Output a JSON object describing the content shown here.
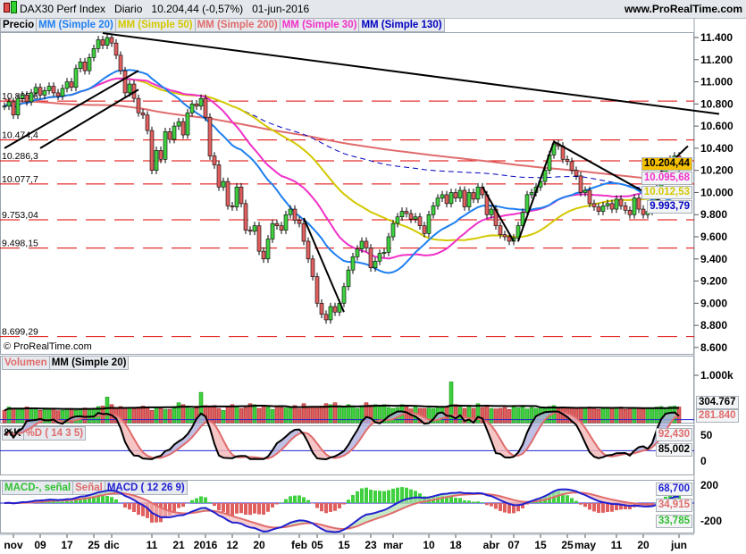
{
  "header": {
    "title": "DAX30 Perf Index   Diario   10.204,44 (-0,57%)   01-jun-2016",
    "site": "www.ProRealTime.com",
    "watermark": "© ProRealTime.com"
  },
  "legend_price": [
    {
      "label": "Precio",
      "color": "#000000"
    },
    {
      "label": "MM (Simple 20)",
      "color": "#1e7ff0"
    },
    {
      "label": "MM (Simple 50)",
      "color": "#d4c800"
    },
    {
      "label": "MM (Simple 200)",
      "color": "#e06c6c"
    },
    {
      "label": "MM (Simple 30)",
      "color": "#f030c8"
    },
    {
      "label": "MM (Simple 130)",
      "color": "#0000c0"
    }
  ],
  "legend_volume": [
    {
      "label": "Volumen",
      "color": "#e06c6c"
    },
    {
      "label": "MM (Simple 20)",
      "color": "#000000"
    }
  ],
  "legend_stoch": [
    {
      "label": "%K",
      "color": "#000000"
    },
    {
      "label": "%D ( 14 3 5)",
      "color": "#e06c6c"
    }
  ],
  "legend_macd": [
    {
      "label": "MACD-, señal",
      "color": "#30c030"
    },
    {
      "label": "Señal",
      "color": "#e06c6c"
    },
    {
      "label": "MACD ( 12 26 9)",
      "color": "#2020d0"
    }
  ],
  "chart_data": {
    "type": "candlestick",
    "ylim": [
      8600,
      11500
    ],
    "yticks": [
      "11.400",
      "11.200",
      "11.000",
      "10.800",
      "10.600",
      "10.400",
      "10.200",
      "10.000",
      "9.800",
      "9.600",
      "9.400",
      "9.200",
      "9.000",
      "8.800",
      "8.600"
    ],
    "ytick_values": [
      11400,
      11200,
      11000,
      10800,
      10600,
      10400,
      10200,
      10000,
      9800,
      9600,
      9400,
      9200,
      9000,
      8800,
      8600
    ],
    "xticks": [
      {
        "label": "nov",
        "bar": 2
      },
      {
        "label": "09",
        "bar": 8
      },
      {
        "label": "17",
        "bar": 14
      },
      {
        "label": "25",
        "bar": 20
      },
      {
        "label": "dic",
        "bar": 24
      },
      {
        "label": "11",
        "bar": 33
      },
      {
        "label": "21",
        "bar": 39
      },
      {
        "label": "2016",
        "bar": 45
      },
      {
        "label": "12",
        "bar": 51
      },
      {
        "label": "20",
        "bar": 57
      },
      {
        "label": "feb",
        "bar": 66
      },
      {
        "label": "05",
        "bar": 70
      },
      {
        "label": "15",
        "bar": 76
      },
      {
        "label": "23",
        "bar": 82
      },
      {
        "label": "mar",
        "bar": 87
      },
      {
        "label": "10",
        "bar": 95
      },
      {
        "label": "18",
        "bar": 101
      },
      {
        "label": "abr",
        "bar": 109
      },
      {
        "label": "07",
        "bar": 114
      },
      {
        "label": "15",
        "bar": 120
      },
      {
        "label": "25",
        "bar": 126
      },
      {
        "label": "may",
        "bar": 130
      },
      {
        "label": "11",
        "bar": 137
      },
      {
        "label": "20",
        "bar": 143
      },
      {
        "label": "jun",
        "bar": 151
      }
    ],
    "closes": [
      10780,
      10820,
      10700,
      10850,
      10880,
      10820,
      10900,
      10950,
      10880,
      10920,
      10960,
      10900,
      10870,
      10940,
      11000,
      10950,
      11120,
      11180,
      11100,
      11220,
      11300,
      11380,
      11330,
      11400,
      11350,
      11240,
      11100,
      10900,
      10980,
      10850,
      10720,
      10700,
      10560,
      10200,
      10380,
      10300,
      10550,
      10480,
      10600,
      10640,
      10520,
      10720,
      10800,
      10780,
      10850,
      10680,
      10330,
      10250,
      10050,
      10100,
      9880,
      9870,
      10050,
      9900,
      9660,
      9650,
      9700,
      9470,
      9400,
      9580,
      9720,
      9700,
      9660,
      9800,
      9850,
      9750,
      9720,
      9560,
      9400,
      9240,
      9000,
      8900,
      8850,
      8970,
      8920,
      9000,
      9150,
      9300,
      9420,
      9490,
      9560,
      9500,
      9320,
      9380,
      9450,
      9460,
      9600,
      9720,
      9780,
      9830,
      9810,
      9760,
      9780,
      9700,
      9630,
      9800,
      9880,
      9950,
      9980,
      9900,
      10000,
      9950,
      10020,
      9870,
      10000,
      9940,
      10050,
      9980,
      9800,
      9850,
      9700,
      9620,
      9600,
      9560,
      9590,
      9700,
      9820,
      9980,
      10000,
      10050,
      10100,
      10200,
      10340,
      10440,
      10420,
      10300,
      10280,
      10200,
      10150,
      10000,
      10020,
      9900,
      9870,
      9830,
      9880,
      9900,
      9850,
      9940,
      9880,
      9840,
      9800,
      9950,
      9850,
      9800,
      9830,
      9900,
      10050,
      10150,
      10270,
      10300,
      10330,
      10204
    ],
    "volume_k": [
      260,
      330,
      300,
      300,
      290,
      330,
      300,
      310,
      260,
      280,
      290,
      300,
      250,
      260,
      300,
      280,
      260,
      290,
      310,
      290,
      300,
      340,
      350,
      540,
      380,
      300,
      340,
      300,
      320,
      290,
      330,
      350,
      310,
      260,
      320,
      300,
      280,
      280,
      340,
      420,
      380,
      350,
      300,
      350,
      640,
      360,
      340,
      360,
      300,
      260,
      330,
      380,
      350,
      300,
      320,
      400,
      380,
      300,
      330,
      330,
      280,
      340,
      320,
      310,
      320,
      360,
      290,
      400,
      330,
      310,
      330,
      350,
      400,
      380,
      420,
      360,
      330,
      380,
      350,
      300,
      340,
      420,
      370,
      380,
      360,
      380,
      320,
      300,
      320,
      380,
      330,
      290,
      360,
      300,
      300,
      310,
      300,
      320,
      340,
      330,
      860,
      380,
      330,
      300,
      350,
      300,
      400,
      320,
      360,
      300,
      290,
      300,
      320,
      280,
      330,
      310,
      340,
      290,
      320,
      300,
      320,
      300,
      340,
      360,
      300,
      320,
      330,
      300,
      300,
      320,
      310,
      330,
      300,
      280,
      300,
      320,
      300,
      310,
      330,
      280,
      300,
      300,
      300,
      290,
      310,
      300,
      330,
      340,
      300,
      340,
      350,
      330
    ],
    "hlines": [
      {
        "label": "10.825,6",
        "value": 10825.6
      },
      {
        "label": "10.474,4",
        "value": 10474.4
      },
      {
        "label": "10.286,3",
        "value": 10286.3
      },
      {
        "label": "10.077,7",
        "value": 10077.7
      },
      {
        "label": "9.753,04",
        "value": 9753.04
      },
      {
        "label": "9.498,15",
        "value": 9498.15
      },
      {
        "label": "8.699,29",
        "value": 8699.29
      }
    ],
    "trendlines": [
      [
        [
          22,
          11440
        ],
        [
          160,
          10710
        ]
      ],
      [
        [
          0,
          10400
        ],
        [
          30,
          11100
        ]
      ],
      [
        [
          30,
          10930
        ],
        [
          8,
          10400
        ]
      ],
      [
        [
          67,
          9770
        ],
        [
          76,
          8920
        ]
      ],
      [
        [
          107,
          10050
        ],
        [
          114,
          9560
        ]
      ],
      [
        [
          115,
          9560
        ],
        [
          123,
          10460
        ]
      ],
      [
        [
          123,
          10460
        ],
        [
          147,
          9920
        ]
      ],
      [
        [
          146,
          10150
        ],
        [
          153,
          10420
        ]
      ]
    ],
    "last_labels": [
      {
        "text": "10.204,44",
        "color": "#000000",
        "bg": "#f5c000"
      },
      {
        "text": "10.095,68",
        "color": "#f030c8",
        "bg": "#f3f4f6"
      },
      {
        "text": "10.012,53",
        "color": "#d4c800",
        "bg": "#f3f4f6"
      },
      {
        "text": "9.993,79",
        "color": "#0000c0",
        "bg": "#f3f4f6"
      }
    ],
    "volume_axis": {
      "tick": "1.000k",
      "labels": [
        {
          "text": "304.767",
          "color": "#000000"
        },
        {
          "text": "281.840",
          "color": "#e06c6c"
        }
      ]
    },
    "stoch_axis": {
      "ticks": [
        "50",
        "0"
      ],
      "labels": [
        {
          "text": "92,430",
          "color": "#e06c6c"
        },
        {
          "text": "85,002",
          "color": "#000000"
        }
      ]
    },
    "macd_axis": {
      "ticks": [
        "200",
        "-200"
      ],
      "labels": [
        {
          "text": "68,700",
          "color": "#2020d0"
        },
        {
          "text": "34,915",
          "color": "#e06c6c"
        },
        {
          "text": "33,785",
          "color": "#30c030"
        }
      ]
    }
  }
}
